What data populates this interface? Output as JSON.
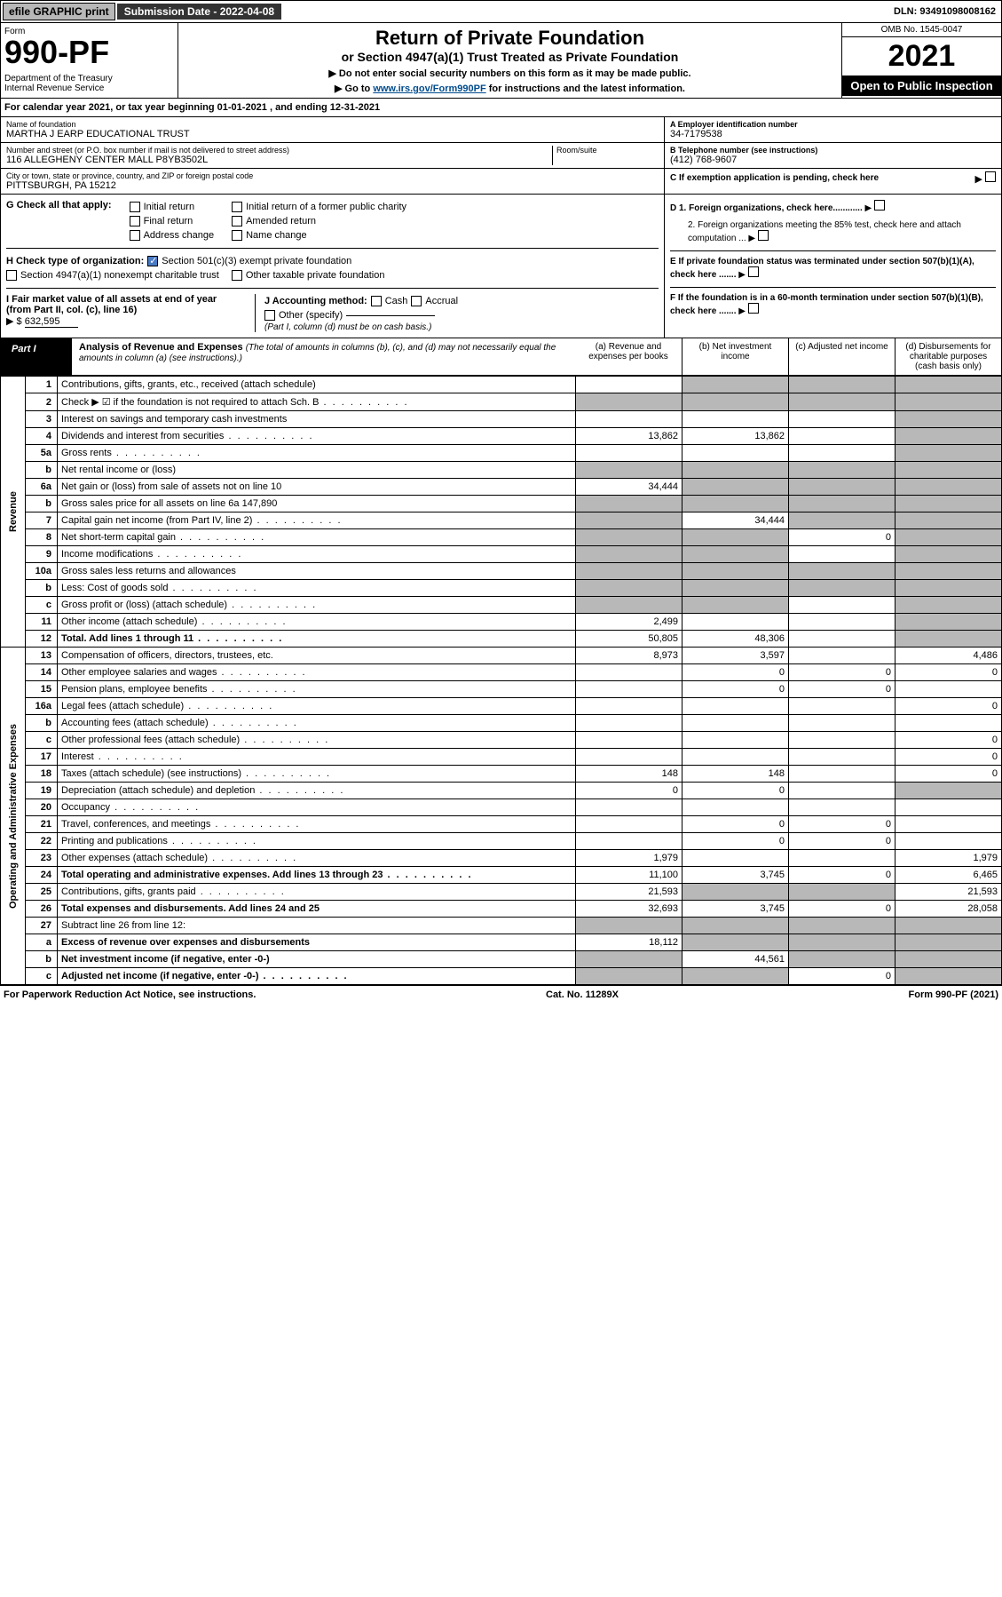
{
  "topbar": {
    "efile": "efile GRAPHIC print",
    "submission_label": "Submission Date - 2022-04-08",
    "dln": "DLN: 93491098008162"
  },
  "header": {
    "form_word": "Form",
    "form_number": "990-PF",
    "dept": "Department of the Treasury\nInternal Revenue Service",
    "title": "Return of Private Foundation",
    "subtitle": "or Section 4947(a)(1) Trust Treated as Private Foundation",
    "note1": "▶ Do not enter social security numbers on this form as it may be made public.",
    "note2_prefix": "▶ Go to ",
    "note2_link": "www.irs.gov/Form990PF",
    "note2_suffix": " for instructions and the latest information.",
    "omb": "OMB No. 1545-0047",
    "year": "2021",
    "open": "Open to Public Inspection"
  },
  "calyear": "For calendar year 2021, or tax year beginning 01-01-2021          , and ending 12-31-2021",
  "foundation": {
    "name_label": "Name of foundation",
    "name": "MARTHA J EARP EDUCATIONAL TRUST",
    "addr_label": "Number and street (or P.O. box number if mail is not delivered to street address)",
    "addr": "116 ALLEGHENY CENTER MALL P8YB3502L",
    "room_label": "Room/suite",
    "city_label": "City or town, state or province, country, and ZIP or foreign postal code",
    "city": "PITTSBURGH, PA  15212",
    "ein_label": "A Employer identification number",
    "ein": "34-7179538",
    "phone_label": "B Telephone number (see instructions)",
    "phone": "(412) 768-9607",
    "c_label": "C If exemption application is pending, check here"
  },
  "g": {
    "label": "G Check all that apply:",
    "opts": [
      "Initial return",
      "Initial return of a former public charity",
      "Final return",
      "Amended return",
      "Address change",
      "Name change"
    ]
  },
  "h": {
    "label": "H Check type of organization:",
    "opt1": "Section 501(c)(3) exempt private foundation",
    "opt2": "Section 4947(a)(1) nonexempt charitable trust",
    "opt3": "Other taxable private foundation"
  },
  "i": {
    "label": "I Fair market value of all assets at end of year (from Part II, col. (c), line 16)",
    "arrow": "▶ $",
    "value": "632,595"
  },
  "j": {
    "label": "J Accounting method:",
    "opts": [
      "Cash",
      "Accrual",
      "Other (specify)"
    ],
    "note": "(Part I, column (d) must be on cash basis.)"
  },
  "right_items": {
    "d1": "D 1. Foreign organizations, check here............",
    "d2": "2. Foreign organizations meeting the 85% test, check here and attach computation ...",
    "e": "E  If private foundation status was terminated under section 507(b)(1)(A), check here .......",
    "f": "F  If the foundation is in a 60-month termination under section 507(b)(1)(B), check here ......."
  },
  "part1": {
    "label": "Part I",
    "title": "Analysis of Revenue and Expenses",
    "subtitle": "(The total of amounts in columns (b), (c), and (d) may not necessarily equal the amounts in column (a) (see instructions).)",
    "cols": {
      "a": "(a)  Revenue and expenses per books",
      "b": "(b)  Net investment income",
      "c": "(c)  Adjusted net income",
      "d": "(d)  Disbursements for charitable purposes (cash basis only)"
    }
  },
  "side_labels": {
    "revenue": "Revenue",
    "expenses": "Operating and Administrative Expenses"
  },
  "rows": [
    {
      "n": "1",
      "d": "Contributions, gifts, grants, etc., received (attach schedule)",
      "a": "",
      "b": "shade",
      "c": "shade",
      "dcol": "shade"
    },
    {
      "n": "2",
      "d": "Check ▶ ☑ if the foundation is not required to attach Sch. B",
      "dots": true,
      "a": "shade",
      "b": "shade",
      "c": "shade",
      "dcol": "shade"
    },
    {
      "n": "3",
      "d": "Interest on savings and temporary cash investments",
      "a": "",
      "b": "",
      "c": "",
      "dcol": "shade"
    },
    {
      "n": "4",
      "d": "Dividends and interest from securities",
      "dots": true,
      "a": "13,862",
      "b": "13,862",
      "c": "",
      "dcol": "shade"
    },
    {
      "n": "5a",
      "d": "Gross rents",
      "dots": true,
      "a": "",
      "b": "",
      "c": "",
      "dcol": "shade"
    },
    {
      "n": "b",
      "d": "Net rental income or (loss)",
      "a": "shade",
      "b": "shade",
      "c": "shade",
      "dcol": "shade"
    },
    {
      "n": "6a",
      "d": "Net gain or (loss) from sale of assets not on line 10",
      "a": "34,444",
      "b": "shade",
      "c": "shade",
      "dcol": "shade"
    },
    {
      "n": "b",
      "d": "Gross sales price for all assets on line 6a          147,890",
      "a": "shade",
      "b": "shade",
      "c": "shade",
      "dcol": "shade"
    },
    {
      "n": "7",
      "d": "Capital gain net income (from Part IV, line 2)",
      "dots": true,
      "a": "shade",
      "b": "34,444",
      "c": "shade",
      "dcol": "shade"
    },
    {
      "n": "8",
      "d": "Net short-term capital gain",
      "dots": true,
      "a": "shade",
      "b": "shade",
      "c": "0",
      "dcol": "shade"
    },
    {
      "n": "9",
      "d": "Income modifications",
      "dots": true,
      "a": "shade",
      "b": "shade",
      "c": "",
      "dcol": "shade"
    },
    {
      "n": "10a",
      "d": "Gross sales less returns and allowances",
      "a": "shade",
      "b": "shade",
      "c": "shade",
      "dcol": "shade"
    },
    {
      "n": "b",
      "d": "Less: Cost of goods sold",
      "dots": true,
      "a": "shade",
      "b": "shade",
      "c": "shade",
      "dcol": "shade"
    },
    {
      "n": "c",
      "d": "Gross profit or (loss) (attach schedule)",
      "dots": true,
      "a": "shade",
      "b": "shade",
      "c": "",
      "dcol": "shade"
    },
    {
      "n": "11",
      "d": "Other income (attach schedule)",
      "dots": true,
      "a": "2,499",
      "b": "",
      "c": "",
      "dcol": "shade"
    },
    {
      "n": "12",
      "d": "Total. Add lines 1 through 11",
      "dots": true,
      "bold": true,
      "a": "50,805",
      "b": "48,306",
      "c": "",
      "dcol": "shade"
    },
    {
      "n": "13",
      "d": "Compensation of officers, directors, trustees, etc.",
      "a": "8,973",
      "b": "3,597",
      "c": "",
      "dcol": "4,486"
    },
    {
      "n": "14",
      "d": "Other employee salaries and wages",
      "dots": true,
      "a": "",
      "b": "0",
      "c": "0",
      "dcol": "0"
    },
    {
      "n": "15",
      "d": "Pension plans, employee benefits",
      "dots": true,
      "a": "",
      "b": "0",
      "c": "0",
      "dcol": ""
    },
    {
      "n": "16a",
      "d": "Legal fees (attach schedule)",
      "dots": true,
      "a": "",
      "b": "",
      "c": "",
      "dcol": "0"
    },
    {
      "n": "b",
      "d": "Accounting fees (attach schedule)",
      "dots": true,
      "a": "",
      "b": "",
      "c": "",
      "dcol": ""
    },
    {
      "n": "c",
      "d": "Other professional fees (attach schedule)",
      "dots": true,
      "a": "",
      "b": "",
      "c": "",
      "dcol": "0"
    },
    {
      "n": "17",
      "d": "Interest",
      "dots": true,
      "a": "",
      "b": "",
      "c": "",
      "dcol": "0"
    },
    {
      "n": "18",
      "d": "Taxes (attach schedule) (see instructions)",
      "dots": true,
      "a": "148",
      "b": "148",
      "c": "",
      "dcol": "0"
    },
    {
      "n": "19",
      "d": "Depreciation (attach schedule) and depletion",
      "dots": true,
      "a": "0",
      "b": "0",
      "c": "",
      "dcol": "shade"
    },
    {
      "n": "20",
      "d": "Occupancy",
      "dots": true,
      "a": "",
      "b": "",
      "c": "",
      "dcol": ""
    },
    {
      "n": "21",
      "d": "Travel, conferences, and meetings",
      "dots": true,
      "a": "",
      "b": "0",
      "c": "0",
      "dcol": ""
    },
    {
      "n": "22",
      "d": "Printing and publications",
      "dots": true,
      "a": "",
      "b": "0",
      "c": "0",
      "dcol": ""
    },
    {
      "n": "23",
      "d": "Other expenses (attach schedule)",
      "dots": true,
      "a": "1,979",
      "b": "",
      "c": "",
      "dcol": "1,979"
    },
    {
      "n": "24",
      "d": "Total operating and administrative expenses. Add lines 13 through 23",
      "dots": true,
      "bold": true,
      "a": "11,100",
      "b": "3,745",
      "c": "0",
      "dcol": "6,465"
    },
    {
      "n": "25",
      "d": "Contributions, gifts, grants paid",
      "dots": true,
      "a": "21,593",
      "b": "shade",
      "c": "shade",
      "dcol": "21,593"
    },
    {
      "n": "26",
      "d": "Total expenses and disbursements. Add lines 24 and 25",
      "bold": true,
      "a": "32,693",
      "b": "3,745",
      "c": "0",
      "dcol": "28,058"
    },
    {
      "n": "27",
      "d": "Subtract line 26 from line 12:",
      "a": "shade",
      "b": "shade",
      "c": "shade",
      "dcol": "shade"
    },
    {
      "n": "a",
      "d": "Excess of revenue over expenses and disbursements",
      "bold": true,
      "a": "18,112",
      "b": "shade",
      "c": "shade",
      "dcol": "shade"
    },
    {
      "n": "b",
      "d": "Net investment income (if negative, enter -0-)",
      "bold": true,
      "a": "shade",
      "b": "44,561",
      "c": "shade",
      "dcol": "shade"
    },
    {
      "n": "c",
      "d": "Adjusted net income (if negative, enter -0-)",
      "dots": true,
      "bold": true,
      "a": "shade",
      "b": "shade",
      "c": "0",
      "dcol": "shade"
    }
  ],
  "footer": {
    "left": "For Paperwork Reduction Act Notice, see instructions.",
    "mid": "Cat. No. 11289X",
    "right": "Form 990-PF (2021)"
  },
  "colors": {
    "shade": "#b8b8b8",
    "link": "#004b8d",
    "check": "#4a7bc4"
  }
}
